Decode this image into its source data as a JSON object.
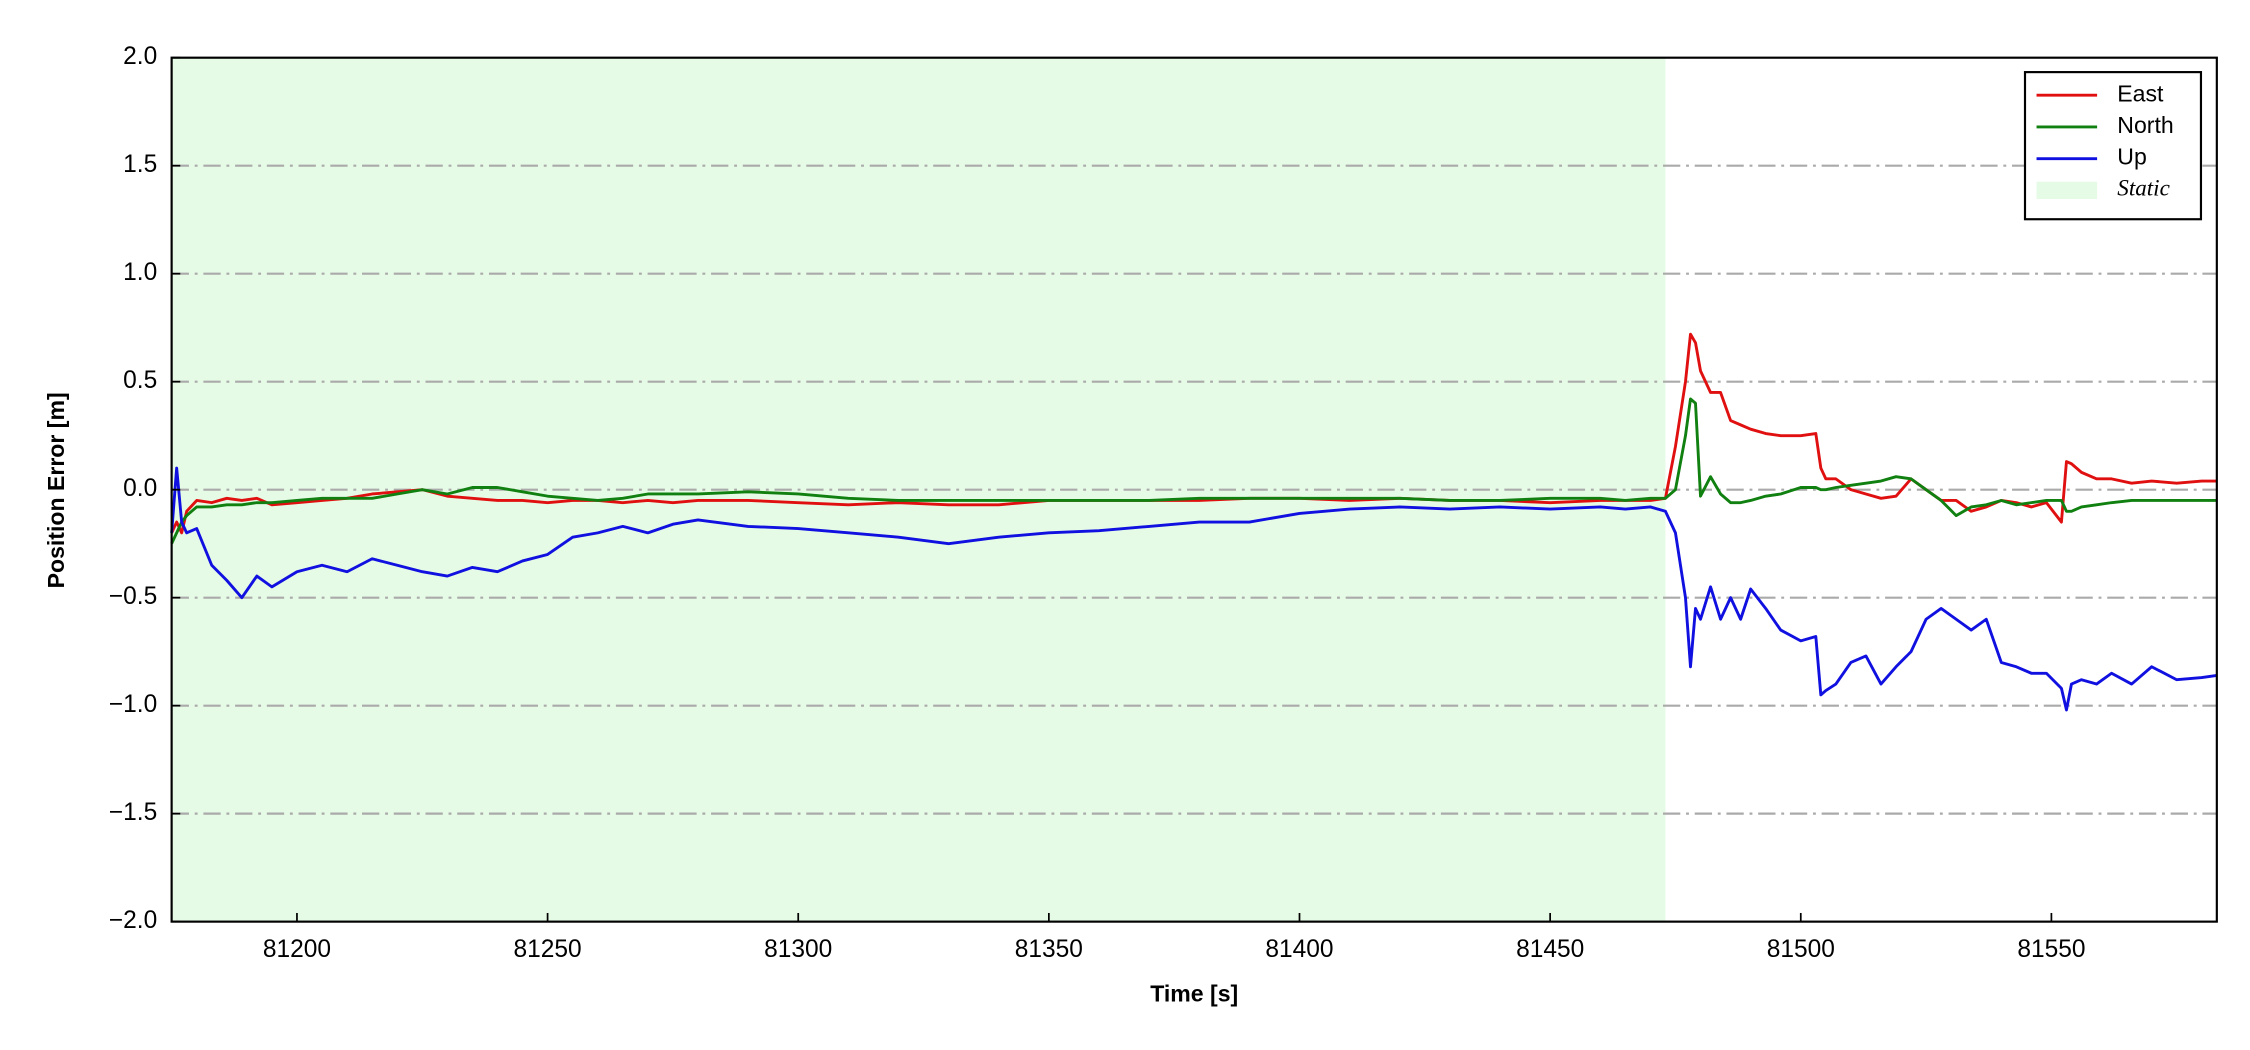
{
  "chart_data": {
    "type": "line",
    "xlabel": "Time [s]",
    "ylabel": "Position Error [m]",
    "xlim": [
      81175,
      81583
    ],
    "ylim": [
      -2.0,
      2.0
    ],
    "xticks": [
      81200,
      81250,
      81300,
      81350,
      81400,
      81450,
      81500,
      81550
    ],
    "yticks": [
      {
        "value": -2.0,
        "label": "−2.0"
      },
      {
        "value": -1.5,
        "label": "−1.5"
      },
      {
        "value": -1.0,
        "label": "−1.0"
      },
      {
        "value": -0.5,
        "label": "−0.5"
      },
      {
        "value": 0.0,
        "label": "0.0"
      },
      {
        "value": 0.5,
        "label": "0.5"
      },
      {
        "value": 1.0,
        "label": "1.0"
      },
      {
        "value": 1.5,
        "label": "1.5"
      },
      {
        "value": 2.0,
        "label": "2.0"
      }
    ],
    "grid": true,
    "legend": "upper right",
    "spans": [
      {
        "name": "Static",
        "start": 81175,
        "end": 81473,
        "color": "#e6fbe6"
      }
    ],
    "x": [
      81175,
      81176,
      81177,
      81178,
      81180,
      81183,
      81186,
      81189,
      81192,
      81195,
      81200,
      81205,
      81210,
      81215,
      81220,
      81225,
      81230,
      81235,
      81240,
      81245,
      81250,
      81255,
      81260,
      81265,
      81270,
      81275,
      81280,
      81290,
      81300,
      81310,
      81320,
      81330,
      81340,
      81350,
      81360,
      81370,
      81380,
      81390,
      81400,
      81410,
      81420,
      81430,
      81440,
      81450,
      81460,
      81465,
      81470,
      81473,
      81475,
      81477,
      81478,
      81479,
      81480,
      81482,
      81484,
      81486,
      81488,
      81490,
      81493,
      81496,
      81500,
      81503,
      81504,
      81505,
      81507,
      81510,
      81513,
      81516,
      81519,
      81522,
      81525,
      81528,
      81531,
      81534,
      81537,
      81540,
      81543,
      81546,
      81549,
      81552,
      81553,
      81554,
      81556,
      81559,
      81562,
      81566,
      81570,
      81575,
      81580,
      81583
    ],
    "series": [
      {
        "name": "East",
        "color": "#e01010",
        "values": [
          -0.2,
          -0.15,
          -0.2,
          -0.1,
          -0.05,
          -0.06,
          -0.04,
          -0.05,
          -0.04,
          -0.07,
          -0.06,
          -0.05,
          -0.04,
          -0.02,
          -0.01,
          0.0,
          -0.03,
          -0.04,
          -0.05,
          -0.05,
          -0.06,
          -0.05,
          -0.05,
          -0.06,
          -0.05,
          -0.06,
          -0.05,
          -0.05,
          -0.06,
          -0.07,
          -0.06,
          -0.07,
          -0.07,
          -0.05,
          -0.05,
          -0.05,
          -0.05,
          -0.04,
          -0.04,
          -0.05,
          -0.04,
          -0.05,
          -0.05,
          -0.06,
          -0.05,
          -0.05,
          -0.05,
          -0.04,
          0.2,
          0.5,
          0.72,
          0.68,
          0.55,
          0.45,
          0.45,
          0.32,
          0.3,
          0.28,
          0.26,
          0.25,
          0.25,
          0.26,
          0.1,
          0.05,
          0.05,
          0.0,
          -0.02,
          -0.04,
          -0.03,
          0.05,
          0.0,
          -0.05,
          -0.05,
          -0.1,
          -0.08,
          -0.05,
          -0.06,
          -0.08,
          -0.06,
          -0.15,
          0.13,
          0.12,
          0.08,
          0.05,
          0.05,
          0.03,
          0.04,
          0.03,
          0.04,
          0.04
        ]
      },
      {
        "name": "North",
        "color": "#108010",
        "values": [
          -0.25,
          -0.2,
          -0.15,
          -0.12,
          -0.08,
          -0.08,
          -0.07,
          -0.07,
          -0.06,
          -0.06,
          -0.05,
          -0.04,
          -0.04,
          -0.04,
          -0.02,
          0.0,
          -0.02,
          0.01,
          0.01,
          -0.01,
          -0.03,
          -0.04,
          -0.05,
          -0.04,
          -0.02,
          -0.02,
          -0.02,
          -0.01,
          -0.02,
          -0.04,
          -0.05,
          -0.05,
          -0.05,
          -0.05,
          -0.05,
          -0.05,
          -0.04,
          -0.04,
          -0.04,
          -0.04,
          -0.04,
          -0.05,
          -0.05,
          -0.04,
          -0.04,
          -0.05,
          -0.04,
          -0.04,
          0.0,
          0.25,
          0.42,
          0.4,
          -0.03,
          0.06,
          -0.02,
          -0.06,
          -0.06,
          -0.05,
          -0.03,
          -0.02,
          0.01,
          0.01,
          0.0,
          0.0,
          0.01,
          0.02,
          0.03,
          0.04,
          0.06,
          0.05,
          0.0,
          -0.05,
          -0.12,
          -0.08,
          -0.07,
          -0.05,
          -0.07,
          -0.06,
          -0.05,
          -0.05,
          -0.1,
          -0.1,
          -0.08,
          -0.07,
          -0.06,
          -0.05,
          -0.05,
          -0.05,
          -0.05,
          -0.05
        ]
      },
      {
        "name": "Up",
        "color": "#1010e0",
        "values": [
          -0.2,
          0.1,
          -0.15,
          -0.2,
          -0.18,
          -0.35,
          -0.42,
          -0.5,
          -0.4,
          -0.45,
          -0.38,
          -0.35,
          -0.38,
          -0.32,
          -0.35,
          -0.38,
          -0.4,
          -0.36,
          -0.38,
          -0.33,
          -0.3,
          -0.22,
          -0.2,
          -0.17,
          -0.2,
          -0.16,
          -0.14,
          -0.17,
          -0.18,
          -0.2,
          -0.22,
          -0.25,
          -0.22,
          -0.2,
          -0.19,
          -0.17,
          -0.15,
          -0.15,
          -0.11,
          -0.09,
          -0.08,
          -0.09,
          -0.08,
          -0.09,
          -0.08,
          -0.09,
          -0.08,
          -0.1,
          -0.2,
          -0.5,
          -0.82,
          -0.55,
          -0.6,
          -0.45,
          -0.6,
          -0.5,
          -0.6,
          -0.46,
          -0.55,
          -0.65,
          -0.7,
          -0.68,
          -0.95,
          -0.93,
          -0.9,
          -0.8,
          -0.77,
          -0.9,
          -0.82,
          -0.75,
          -0.6,
          -0.55,
          -0.6,
          -0.65,
          -0.6,
          -0.8,
          -0.82,
          -0.85,
          -0.85,
          -0.92,
          -1.02,
          -0.9,
          -0.88,
          -0.9,
          -0.85,
          -0.9,
          -0.82,
          -0.88,
          -0.87,
          -0.86
        ]
      }
    ]
  }
}
